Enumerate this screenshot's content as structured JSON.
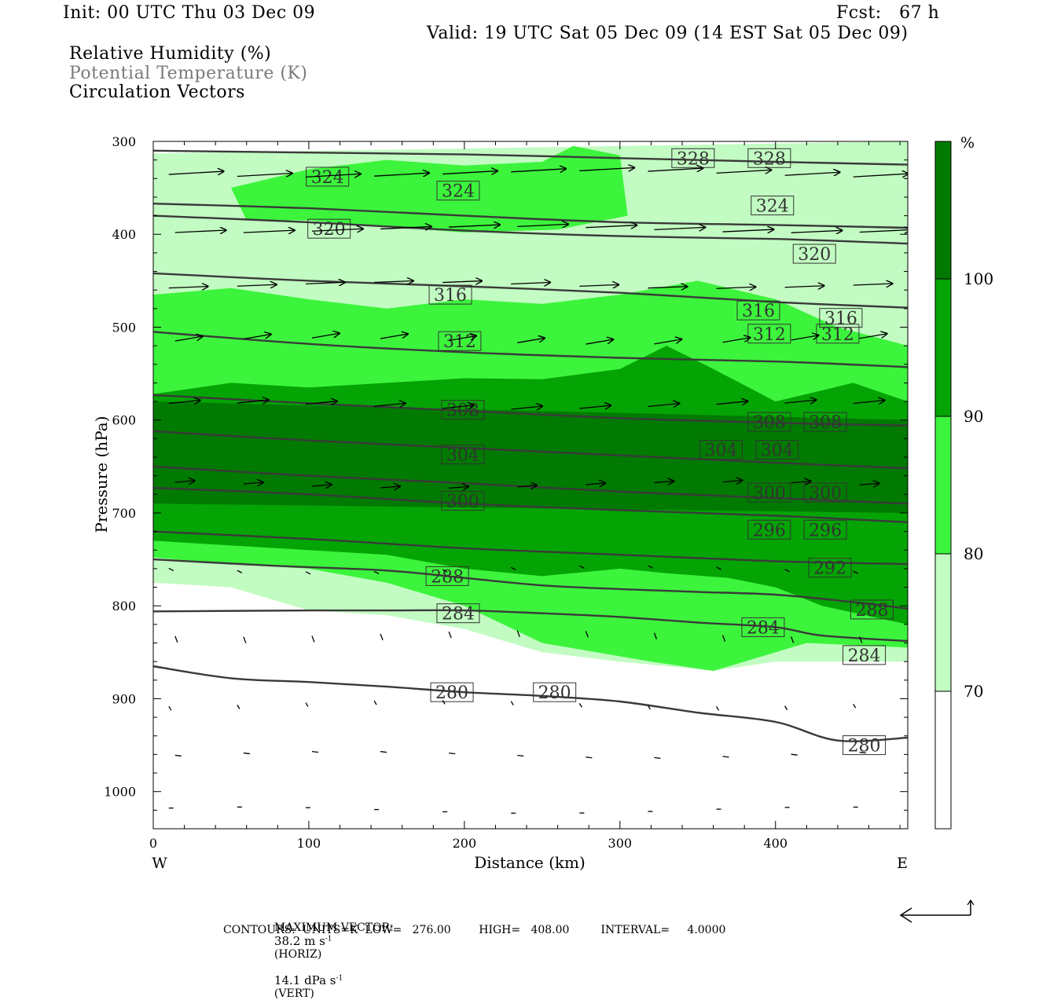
{
  "header": {
    "init": "Init: 00 UTC Thu 03 Dec 09",
    "fcst": "Fcst:   67 h",
    "valid": "Valid: 19 UTC Sat 05 Dec 09 (14 EST Sat 05 Dec 09)",
    "fields": [
      "Relative Humidity (%)",
      "Potential Temperature (K)",
      "Circulation Vectors"
    ]
  },
  "footer": {
    "max_vector_label": "MAXIMUM VECTOR:",
    "horiz": "38.2 m s",
    "horiz_unit": "(HORIZ)",
    "vert": "14.1 dPa s",
    "vert_unit": "(VERT)",
    "contours": "CONTOURS:  UNITS=K  LOW=   276.00        HIGH=   408.00         INTERVAL=     4.0000"
  },
  "colors": {
    "rh70": "#c2fcc2",
    "rh80": "#3cf43c",
    "rh90": "#04a404",
    "rh100": "#007a00",
    "contour": "#3a3a3a"
  },
  "chart_data": {
    "type": "cross-section",
    "xlabel": "Distance (km)",
    "ylabel": "Pressure (hPa)",
    "xlim": [
      0,
      485
    ],
    "ylim": [
      1040,
      300
    ],
    "x_ticks": [
      0,
      100,
      200,
      300,
      400
    ],
    "y_ticks": [
      300,
      400,
      500,
      600,
      700,
      800,
      900,
      1000
    ],
    "x_end_labels": {
      "left": "W",
      "right": "E"
    },
    "colorbar": {
      "unit": "%",
      "levels": [
        70,
        80,
        90,
        100
      ],
      "colors": [
        "#ffffff",
        "#c2fcc2",
        "#3cf43c",
        "#04a404",
        "#007a00"
      ]
    },
    "theta_contours": [
      {
        "value": 280,
        "points": [
          [
            0,
            865
          ],
          [
            50,
            878
          ],
          [
            100,
            882
          ],
          [
            150,
            887
          ],
          [
            200,
            893
          ],
          [
            250,
            897
          ],
          [
            300,
            903
          ],
          [
            350,
            915
          ],
          [
            400,
            925
          ],
          [
            440,
            945
          ],
          [
            485,
            942
          ]
        ],
        "labels": [
          [
            192,
            893
          ],
          [
            258,
            893
          ],
          [
            457,
            950
          ]
        ]
      },
      {
        "value": 284,
        "points": [
          [
            0,
            806
          ],
          [
            100,
            805
          ],
          [
            150,
            805
          ],
          [
            200,
            805
          ],
          [
            250,
            808
          ],
          [
            300,
            812
          ],
          [
            350,
            818
          ],
          [
            400,
            823
          ],
          [
            430,
            832
          ],
          [
            485,
            838
          ]
        ],
        "labels": [
          [
            196,
            808
          ],
          [
            392,
            823
          ],
          [
            457,
            853
          ]
        ]
      },
      {
        "value": 288,
        "points": [
          [
            0,
            750
          ],
          [
            80,
            757
          ],
          [
            150,
            762
          ],
          [
            200,
            770
          ],
          [
            250,
            778
          ],
          [
            300,
            782
          ],
          [
            350,
            785
          ],
          [
            400,
            788
          ],
          [
            450,
            796
          ],
          [
            485,
            803
          ]
        ],
        "labels": [
          [
            189,
            768
          ],
          [
            462,
            804
          ]
        ]
      },
      {
        "value": 292,
        "points": [
          [
            0,
            720
          ],
          [
            100,
            728
          ],
          [
            200,
            738
          ],
          [
            300,
            745
          ],
          [
            400,
            752
          ],
          [
            485,
            755
          ]
        ],
        "labels": [
          [
            435,
            759
          ]
        ]
      },
      {
        "value": 296,
        "points": [
          [
            0,
            673
          ],
          [
            100,
            680
          ],
          [
            200,
            690
          ],
          [
            300,
            697
          ],
          [
            400,
            703
          ],
          [
            485,
            710
          ]
        ],
        "labels": [
          [
            396,
            718
          ],
          [
            432,
            718
          ]
        ]
      },
      {
        "value": 300,
        "points": [
          [
            0,
            650
          ],
          [
            100,
            660
          ],
          [
            200,
            668
          ],
          [
            300,
            677
          ],
          [
            400,
            684
          ],
          [
            485,
            690
          ]
        ],
        "labels": [
          [
            199,
            687
          ],
          [
            396,
            678
          ],
          [
            432,
            678
          ]
        ]
      },
      {
        "value": 304,
        "points": [
          [
            0,
            612
          ],
          [
            100,
            622
          ],
          [
            200,
            630
          ],
          [
            300,
            638
          ],
          [
            400,
            646
          ],
          [
            485,
            652
          ]
        ],
        "labels": [
          [
            199,
            637
          ],
          [
            365,
            632
          ],
          [
            401,
            632
          ]
        ]
      },
      {
        "value": 308,
        "points": [
          [
            0,
            573
          ],
          [
            100,
            582
          ],
          [
            200,
            590
          ],
          [
            300,
            598
          ],
          [
            400,
            603
          ],
          [
            485,
            606
          ]
        ],
        "labels": [
          [
            199,
            589
          ],
          [
            396,
            602
          ],
          [
            432,
            602
          ]
        ]
      },
      {
        "value": 312,
        "points": [
          [
            0,
            505
          ],
          [
            100,
            518
          ],
          [
            200,
            527
          ],
          [
            300,
            533
          ],
          [
            400,
            537
          ],
          [
            485,
            543
          ]
        ],
        "labels": [
          [
            197,
            515
          ],
          [
            396,
            507
          ],
          [
            440,
            507
          ]
        ]
      },
      {
        "value": 316,
        "points": [
          [
            0,
            442
          ],
          [
            100,
            450
          ],
          [
            200,
            456
          ],
          [
            300,
            463
          ],
          [
            400,
            473
          ],
          [
            485,
            479
          ]
        ],
        "labels": [
          [
            191,
            465
          ],
          [
            389,
            482
          ],
          [
            442,
            490
          ]
        ]
      },
      {
        "value": 320,
        "points": [
          [
            0,
            380
          ],
          [
            100,
            387
          ],
          [
            200,
            396
          ],
          [
            300,
            402
          ],
          [
            400,
            405
          ],
          [
            485,
            410
          ]
        ],
        "labels": [
          [
            113,
            394
          ],
          [
            425,
            421
          ]
        ]
      },
      {
        "value": 324,
        "points": [
          [
            0,
            367
          ],
          [
            100,
            372
          ],
          [
            200,
            380
          ],
          [
            300,
            387
          ],
          [
            400,
            390
          ],
          [
            485,
            393
          ]
        ],
        "labels": [
          [
            112,
            338
          ],
          [
            196,
            353
          ],
          [
            398,
            369
          ]
        ]
      },
      {
        "value": 328,
        "points": [
          [
            0,
            310
          ],
          [
            100,
            312
          ],
          [
            200,
            314
          ],
          [
            300,
            318
          ],
          [
            400,
            322
          ],
          [
            485,
            325
          ]
        ],
        "labels": [
          [
            347,
            318
          ],
          [
            396,
            318
          ]
        ]
      }
    ],
    "rh_regions": [
      {
        "level": 70,
        "points": [
          [
            0,
            313
          ],
          [
            485,
            300
          ],
          [
            485,
            860
          ],
          [
            400,
            860
          ],
          [
            360,
            870
          ],
          [
            300,
            860
          ],
          [
            250,
            850
          ],
          [
            200,
            825
          ],
          [
            150,
            810
          ],
          [
            100,
            805
          ],
          [
            50,
            780
          ],
          [
            0,
            775
          ]
        ]
      },
      {
        "level": 80,
        "points": [
          [
            0,
            465
          ],
          [
            50,
            458
          ],
          [
            100,
            470
          ],
          [
            150,
            480
          ],
          [
            200,
            470
          ],
          [
            250,
            475
          ],
          [
            300,
            465
          ],
          [
            350,
            450
          ],
          [
            400,
            470
          ],
          [
            440,
            500
          ],
          [
            485,
            520
          ],
          [
            485,
            845
          ],
          [
            420,
            840
          ],
          [
            380,
            860
          ],
          [
            360,
            870
          ],
          [
            320,
            860
          ],
          [
            250,
            840
          ],
          [
            200,
            800
          ],
          [
            150,
            775
          ],
          [
            100,
            760
          ],
          [
            50,
            755
          ],
          [
            0,
            748
          ]
        ]
      },
      {
        "level": 80,
        "points": [
          [
            50,
            350
          ],
          [
            100,
            330
          ],
          [
            150,
            320
          ],
          [
            200,
            326
          ],
          [
            250,
            322
          ],
          [
            270,
            305
          ],
          [
            300,
            315
          ],
          [
            305,
            380
          ],
          [
            260,
            395
          ],
          [
            200,
            398
          ],
          [
            150,
            392
          ],
          [
            100,
            385
          ],
          [
            60,
            385
          ]
        ]
      },
      {
        "level": 90,
        "points": [
          [
            0,
            572
          ],
          [
            50,
            560
          ],
          [
            100,
            565
          ],
          [
            150,
            560
          ],
          [
            200,
            555
          ],
          [
            250,
            556
          ],
          [
            300,
            545
          ],
          [
            330,
            520
          ],
          [
            360,
            545
          ],
          [
            400,
            580
          ],
          [
            450,
            560
          ],
          [
            485,
            580
          ],
          [
            485,
            820
          ],
          [
            430,
            800
          ],
          [
            400,
            780
          ],
          [
            370,
            770
          ],
          [
            330,
            765
          ],
          [
            300,
            760
          ],
          [
            250,
            768
          ],
          [
            200,
            760
          ],
          [
            150,
            745
          ],
          [
            100,
            740
          ],
          [
            50,
            735
          ],
          [
            0,
            730
          ]
        ]
      },
      {
        "level": 100,
        "points": [
          [
            0,
            580
          ],
          [
            485,
            600
          ],
          [
            485,
            700
          ],
          [
            0,
            690
          ]
        ]
      }
    ]
  }
}
